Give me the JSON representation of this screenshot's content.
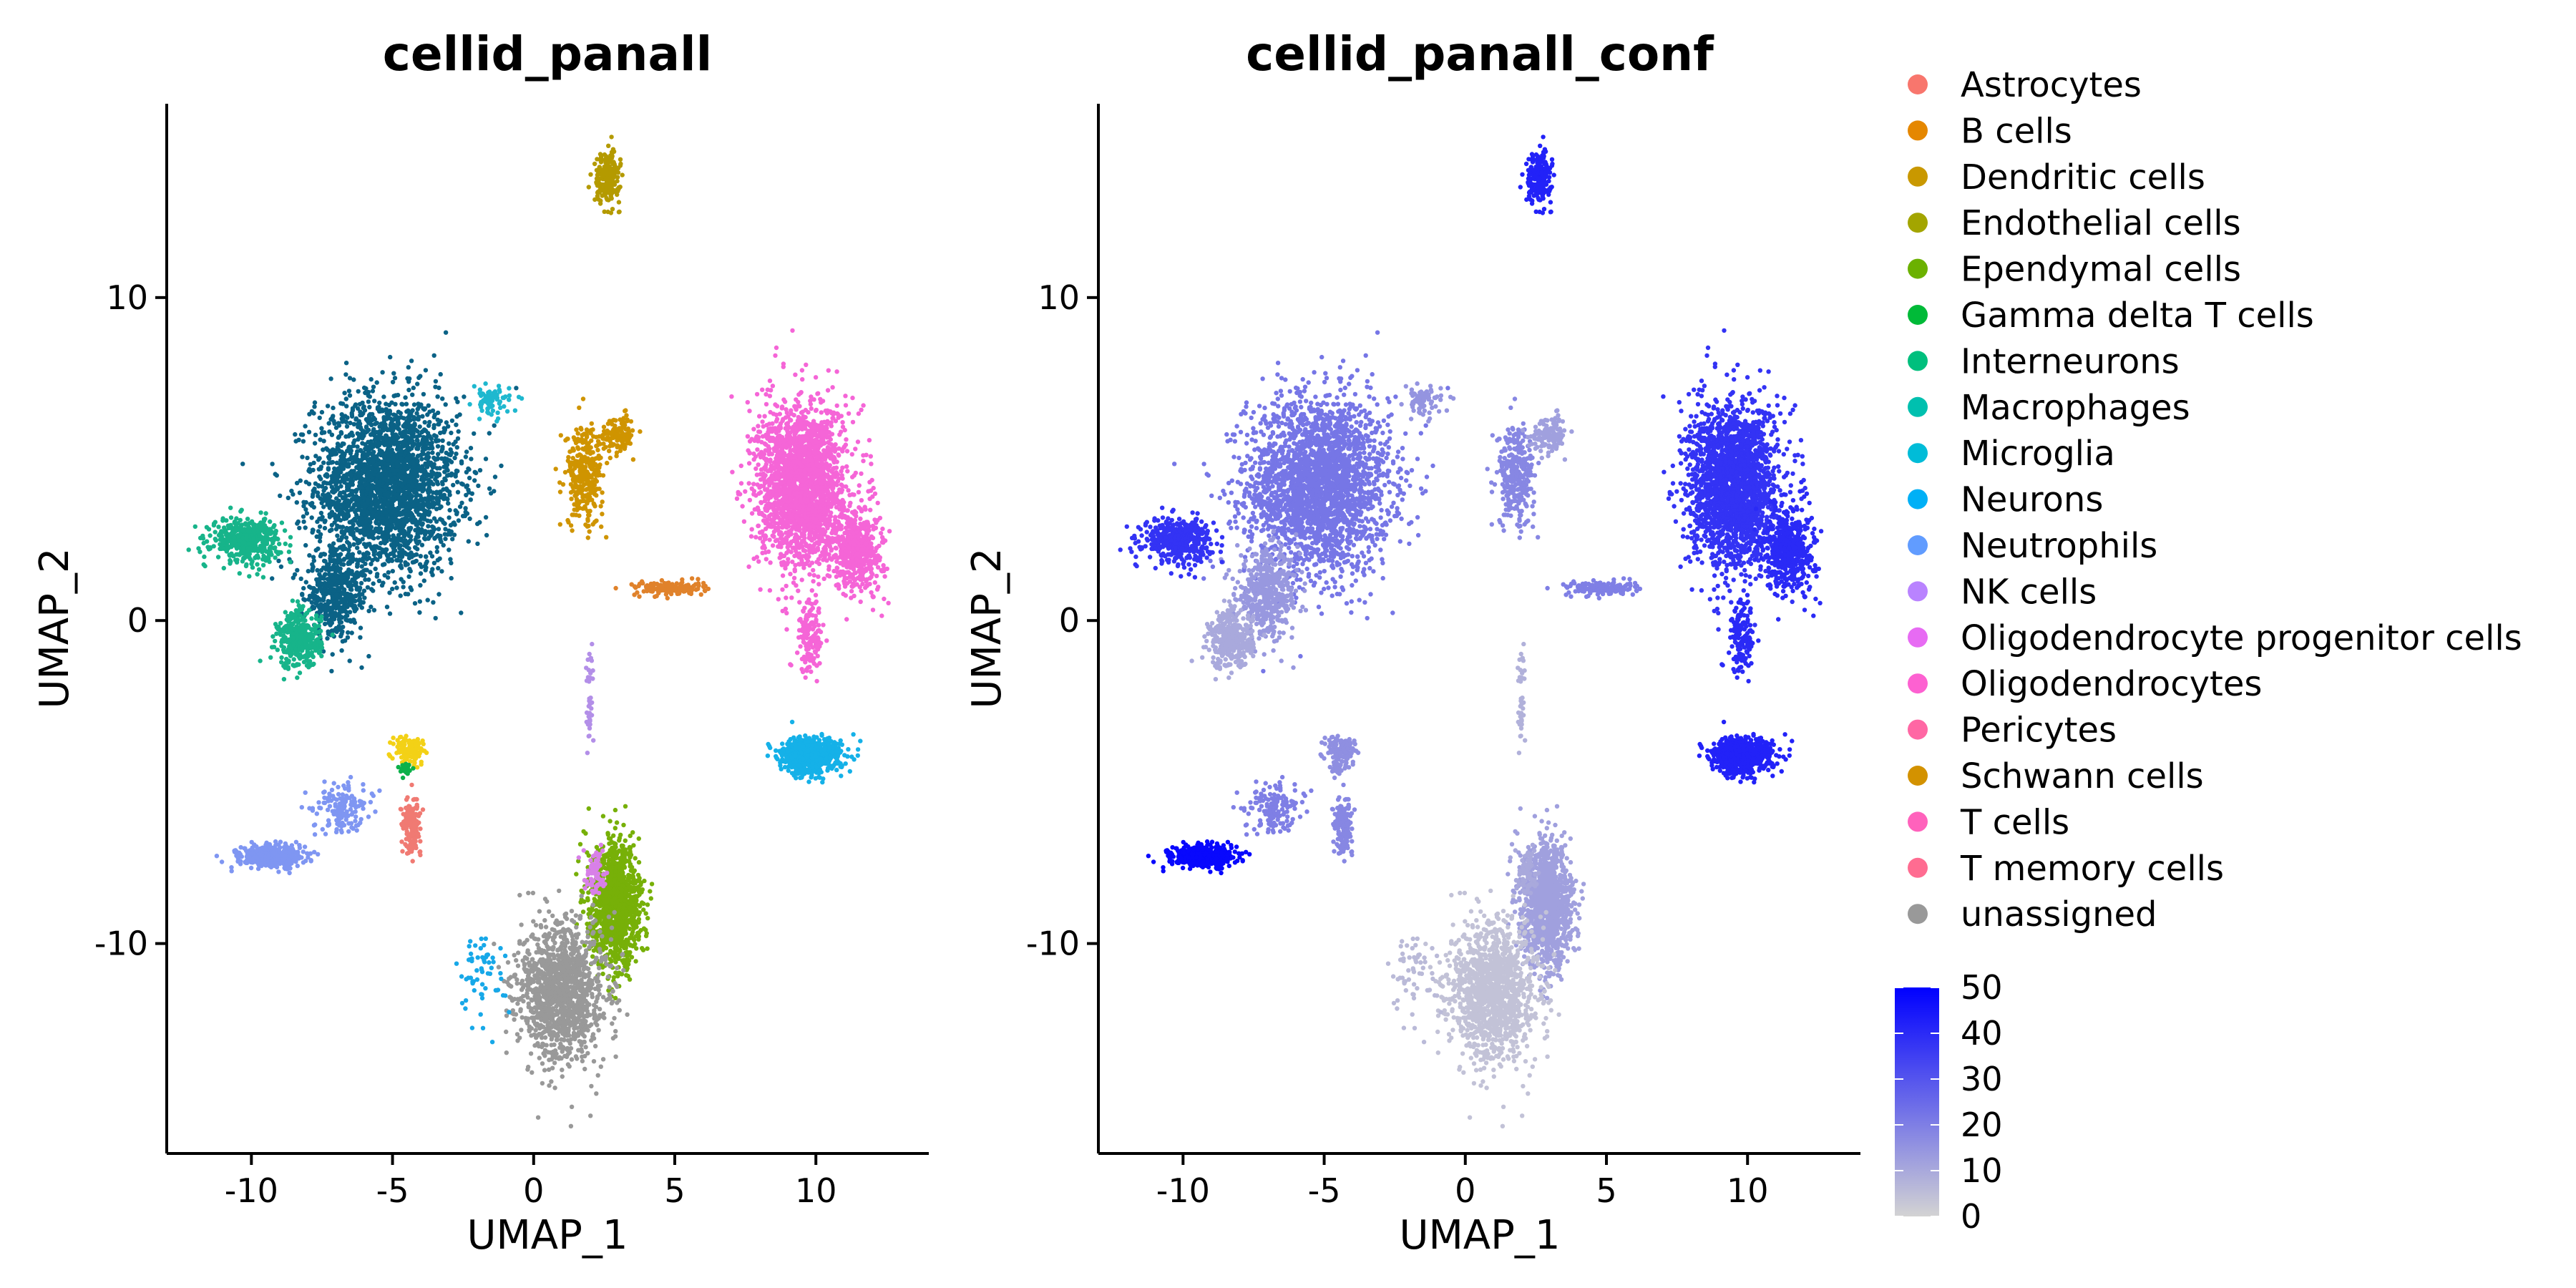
{
  "chart_data": [
    {
      "type": "scatter",
      "title": "cellid_panall",
      "xlabel": "UMAP_1",
      "ylabel": "UMAP_2",
      "xlim": [
        -13,
        14
      ],
      "ylim": [
        -16.5,
        16
      ],
      "xticks": [
        -10,
        -5,
        0,
        5,
        10
      ],
      "yticks": [
        -10,
        0,
        10
      ],
      "xtick_labels": [
        "-10",
        "-5",
        "0",
        "5",
        "10"
      ],
      "ytick_labels": [
        "-10",
        "0",
        "10"
      ],
      "grid": false,
      "legend_position": "right",
      "legend": [
        {
          "label": "Astrocytes",
          "color": "#F8766D"
        },
        {
          "label": "B cells",
          "color": "#E58700"
        },
        {
          "label": "Dendritic cells",
          "color": "#C99800"
        },
        {
          "label": "Endothelial cells",
          "color": "#A3A500"
        },
        {
          "label": "Ependymal cells",
          "color": "#6BB100"
        },
        {
          "label": "Gamma delta T cells",
          "color": "#00BA38"
        },
        {
          "label": "Interneurons",
          "color": "#00BF7D"
        },
        {
          "label": "Macrophages",
          "color": "#00C0AF"
        },
        {
          "label": "Microglia",
          "color": "#00BCD8"
        },
        {
          "label": "Neurons",
          "color": "#00B0F6"
        },
        {
          "label": "Neutrophils",
          "color": "#619CFF"
        },
        {
          "label": "NK cells",
          "color": "#B983FF"
        },
        {
          "label": "Oligodendrocyte progenitor cells",
          "color": "#E76BF3"
        },
        {
          "label": "Oligodendrocytes",
          "color": "#FD61D1"
        },
        {
          "label": "Pericytes",
          "color": "#FF67A4"
        },
        {
          "label": "Schwann cells",
          "color": "#D39200"
        },
        {
          "label": "T cells",
          "color": "#FF62BC"
        },
        {
          "label": "T memory cells",
          "color": "#FF6C91"
        },
        {
          "label": "unassigned",
          "color": "#999999"
        }
      ],
      "clusters": [
        {
          "category": "Macrophages",
          "color": "#0B6286",
          "cx": -5.2,
          "cy": 4.2,
          "sx": 2.3,
          "sy": 2.5,
          "n": 2600
        },
        {
          "category": "Macrophages",
          "color": "#0B6286",
          "cx": -7.0,
          "cy": 0.8,
          "sx": 1.0,
          "sy": 1.2,
          "n": 500
        },
        {
          "category": "Microglia",
          "color": "#17B48A",
          "cx": -10.2,
          "cy": 2.5,
          "sx": 1.1,
          "sy": 0.6,
          "n": 450
        },
        {
          "category": "Microglia",
          "color": "#17B48A",
          "cx": -8.3,
          "cy": -0.6,
          "sx": 0.7,
          "sy": 0.8,
          "n": 350
        },
        {
          "category": "Neutrophils",
          "color": "#1FB8CF",
          "cx": -1.5,
          "cy": 6.8,
          "sx": 0.6,
          "sy": 0.4,
          "n": 80
        },
        {
          "category": "Dendritic cells",
          "color": "#CF9400",
          "cx": 1.8,
          "cy": 4.5,
          "sx": 0.6,
          "sy": 1.4,
          "n": 300
        },
        {
          "category": "Dendritic cells",
          "color": "#CF9400",
          "cx": 3.0,
          "cy": 5.8,
          "sx": 0.6,
          "sy": 0.5,
          "n": 120
        },
        {
          "category": "Endothelial cells",
          "color": "#B49A00",
          "cx": 2.6,
          "cy": 13.7,
          "sx": 0.4,
          "sy": 0.7,
          "n": 220
        },
        {
          "category": "B cells",
          "color": "#E0822B",
          "cx": 4.8,
          "cy": 1.0,
          "sx": 1.1,
          "sy": 0.2,
          "n": 140
        },
        {
          "category": "T cells",
          "color": "#F565D7",
          "cx": 9.5,
          "cy": 4.2,
          "sx": 1.4,
          "sy": 2.3,
          "n": 2200
        },
        {
          "category": "T cells",
          "color": "#F565D7",
          "cx": 11.5,
          "cy": 2.2,
          "sx": 0.8,
          "sy": 1.2,
          "n": 500
        },
        {
          "category": "T cells",
          "color": "#F565D7",
          "cx": 9.8,
          "cy": -0.5,
          "sx": 0.4,
          "sy": 1.0,
          "n": 150
        },
        {
          "category": "NK cells",
          "color": "#15B1E8",
          "cx": 9.8,
          "cy": -4.2,
          "sx": 1.0,
          "sy": 0.5,
          "n": 650
        },
        {
          "category": "Ependymal cells",
          "color": "#77B008",
          "cx": 2.9,
          "cy": -8.8,
          "sx": 0.8,
          "sy": 1.7,
          "n": 1300
        },
        {
          "category": "unassigned",
          "color": "#999999",
          "cx": 1.0,
          "cy": -11.5,
          "sx": 1.4,
          "sy": 1.9,
          "n": 1300
        },
        {
          "category": "Oligodendrocytes",
          "color": "#7F96F2",
          "cx": -9.3,
          "cy": -7.3,
          "sx": 1.0,
          "sy": 0.3,
          "n": 450
        },
        {
          "category": "Oligodendrocytes",
          "color": "#7F96F2",
          "cx": -6.8,
          "cy": -5.8,
          "sx": 0.9,
          "sy": 0.7,
          "n": 150
        },
        {
          "category": "Astrocytes",
          "color": "#F07A73",
          "cx": -4.3,
          "cy": -6.3,
          "sx": 0.3,
          "sy": 0.8,
          "n": 140
        },
        {
          "category": "Neurons",
          "color": "#F3D116",
          "cx": -4.4,
          "cy": -4.0,
          "sx": 0.5,
          "sy": 0.4,
          "n": 120
        },
        {
          "category": "Interneurons",
          "color": "#0CB14A",
          "cx": -4.5,
          "cy": -4.6,
          "sx": 0.2,
          "sy": 0.2,
          "n": 30
        },
        {
          "category": "Schwann cells",
          "color": "#D880E8",
          "cx": 2.2,
          "cy": -7.8,
          "sx": 0.3,
          "sy": 0.6,
          "n": 80
        },
        {
          "category": "Oligodendrocyte progenitor cells",
          "color": "#17A8E8",
          "cx": -1.8,
          "cy": -11.0,
          "sx": 0.8,
          "sy": 1.2,
          "n": 60
        },
        {
          "category": "Pericytes",
          "color": "#B38FE8",
          "cx": 2.0,
          "cy": -2.5,
          "sx": 0.1,
          "sy": 1.8,
          "n": 40
        }
      ]
    },
    {
      "type": "scatter",
      "title": "cellid_panall_conf",
      "xlabel": "UMAP_1",
      "ylabel": "UMAP_2",
      "xlim": [
        -13,
        14
      ],
      "ylim": [
        -16.5,
        16
      ],
      "xticks": [
        -10,
        -5,
        0,
        5,
        10
      ],
      "yticks": [
        -10,
        0,
        10
      ],
      "xtick_labels": [
        "-10",
        "-5",
        "0",
        "5",
        "10"
      ],
      "ytick_labels": [
        "-10",
        "0",
        "10"
      ],
      "grid": false,
      "legend_position": "right",
      "colorbar": {
        "min": 0,
        "max": 50,
        "ticks": [
          "50",
          "40",
          "30",
          "20",
          "10",
          "0"
        ],
        "tick_values": [
          50,
          40,
          30,
          20,
          10,
          0
        ],
        "low_color": "#D3D3D3",
        "high_color": "#0000FF"
      },
      "clusters": [
        {
          "cx": -5.2,
          "cy": 4.2,
          "sx": 2.3,
          "sy": 2.5,
          "n": 2600,
          "value": 22
        },
        {
          "cx": -7.0,
          "cy": 0.8,
          "sx": 1.0,
          "sy": 1.2,
          "n": 500,
          "value": 14
        },
        {
          "cx": -10.2,
          "cy": 2.5,
          "sx": 1.1,
          "sy": 0.6,
          "n": 450,
          "value": 38
        },
        {
          "cx": -8.3,
          "cy": -0.6,
          "sx": 0.7,
          "sy": 0.8,
          "n": 350,
          "value": 10
        },
        {
          "cx": -1.5,
          "cy": 6.8,
          "sx": 0.6,
          "sy": 0.4,
          "n": 80,
          "value": 15
        },
        {
          "cx": 1.8,
          "cy": 4.5,
          "sx": 0.6,
          "sy": 1.4,
          "n": 300,
          "value": 18
        },
        {
          "cx": 3.0,
          "cy": 5.8,
          "sx": 0.6,
          "sy": 0.5,
          "n": 120,
          "value": 12
        },
        {
          "cx": 2.6,
          "cy": 13.7,
          "sx": 0.4,
          "sy": 0.7,
          "n": 220,
          "value": 42
        },
        {
          "cx": 4.8,
          "cy": 1.0,
          "sx": 1.1,
          "sy": 0.2,
          "n": 140,
          "value": 20
        },
        {
          "cx": 9.5,
          "cy": 4.2,
          "sx": 1.4,
          "sy": 2.3,
          "n": 2200,
          "value": 38
        },
        {
          "cx": 11.5,
          "cy": 2.2,
          "sx": 0.8,
          "sy": 1.2,
          "n": 500,
          "value": 40
        },
        {
          "cx": 9.8,
          "cy": -0.5,
          "sx": 0.4,
          "sy": 1.0,
          "n": 150,
          "value": 40
        },
        {
          "cx": 9.8,
          "cy": -4.2,
          "sx": 1.0,
          "sy": 0.5,
          "n": 650,
          "value": 42
        },
        {
          "cx": 2.9,
          "cy": -8.8,
          "sx": 0.8,
          "sy": 1.7,
          "n": 1300,
          "value": 12
        },
        {
          "cx": 1.0,
          "cy": -11.5,
          "sx": 1.4,
          "sy": 1.9,
          "n": 1300,
          "value": 4
        },
        {
          "cx": -9.3,
          "cy": -7.3,
          "sx": 1.0,
          "sy": 0.3,
          "n": 450,
          "value": 48
        },
        {
          "cx": -6.8,
          "cy": -5.8,
          "sx": 0.9,
          "sy": 0.7,
          "n": 150,
          "value": 20
        },
        {
          "cx": -4.3,
          "cy": -6.3,
          "sx": 0.3,
          "sy": 0.8,
          "n": 140,
          "value": 18
        },
        {
          "cx": -4.4,
          "cy": -4.0,
          "sx": 0.5,
          "sy": 0.4,
          "n": 120,
          "value": 16
        },
        {
          "cx": -4.5,
          "cy": -4.6,
          "sx": 0.2,
          "sy": 0.2,
          "n": 30,
          "value": 16
        },
        {
          "cx": 2.2,
          "cy": -7.8,
          "sx": 0.3,
          "sy": 0.6,
          "n": 80,
          "value": 10
        },
        {
          "cx": -1.8,
          "cy": -11.0,
          "sx": 0.8,
          "sy": 1.2,
          "n": 60,
          "value": 6
        },
        {
          "cx": 2.0,
          "cy": -2.5,
          "sx": 0.1,
          "sy": 1.8,
          "n": 40,
          "value": 8
        }
      ]
    }
  ]
}
